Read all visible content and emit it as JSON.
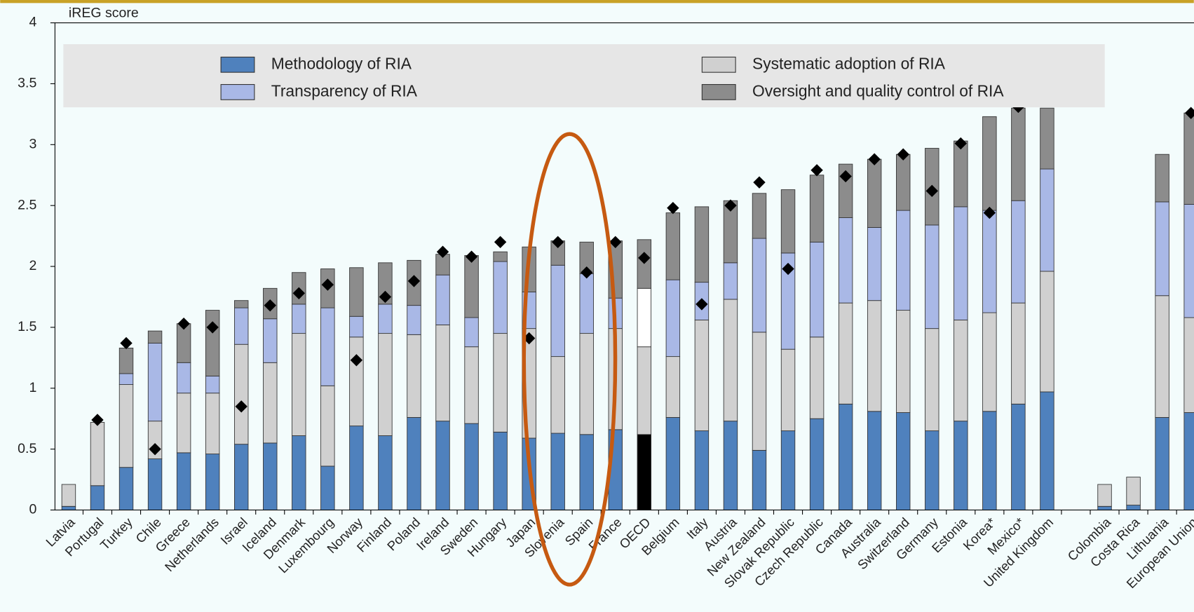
{
  "chart_data": {
    "type": "stacked_bar",
    "y_label": "iREG score",
    "categories": [
      "Latvia",
      "Portugal",
      "Turkey",
      "Chile",
      "Greece",
      "Netherlands",
      "Israel",
      "Iceland",
      "Denmark",
      "Luxembourg",
      "Norway",
      "Finland",
      "Poland",
      "Ireland",
      "Sweden",
      "Hungary",
      "Japan",
      "Slovenia",
      "Spain",
      "France",
      "OECD",
      "Belgium",
      "Italy",
      "Austria",
      "New Zealand",
      "Slovak Republic",
      "Czech Republic",
      "Canada",
      "Australia",
      "Switzerland",
      "Germany",
      "Estonia",
      "Korea*",
      "Mexico*",
      "United Kingdom",
      null,
      "Colombia",
      "Costa Rica",
      "Lithuania",
      "European Union"
    ],
    "series": [
      {
        "name": "Methodology of RIA",
        "color": "#4f81bd",
        "values": [
          0.03,
          0.2,
          0.35,
          0.42,
          0.47,
          0.46,
          0.54,
          0.55,
          0.61,
          0.36,
          0.69,
          0.61,
          0.76,
          0.73,
          0.71,
          0.64,
          0.59,
          0.63,
          0.62,
          0.66,
          0.62,
          0.76,
          0.65,
          0.73,
          0.49,
          0.65,
          0.75,
          0.87,
          0.81,
          0.8,
          0.65,
          0.73,
          0.81,
          0.87,
          0.97,
          null,
          0.03,
          0.04,
          0.76,
          0.8
        ]
      },
      {
        "name": "Systematic adoption of RIA",
        "color": "#d0d0d0",
        "values": [
          0.18,
          0.52,
          0.68,
          0.31,
          0.49,
          0.5,
          0.82,
          0.66,
          0.84,
          0.66,
          0.73,
          0.84,
          0.68,
          0.79,
          0.63,
          0.81,
          0.9,
          0.63,
          0.83,
          0.83,
          0.72,
          0.5,
          0.91,
          1.0,
          0.97,
          0.67,
          0.67,
          0.83,
          0.91,
          0.84,
          0.84,
          0.83,
          0.81,
          0.83,
          0.99,
          null,
          0.18,
          0.23,
          1.0,
          0.78
        ]
      },
      {
        "name": "Transparency of RIA",
        "color": "#a9b8e6",
        "values": [
          0,
          0,
          0.09,
          0.64,
          0.25,
          0.14,
          0.3,
          0.36,
          0.24,
          0.64,
          0.17,
          0.24,
          0.24,
          0.41,
          0.24,
          0.59,
          0.3,
          0.75,
          0.49,
          0.25,
          0.48,
          0.63,
          0.31,
          0.3,
          0.77,
          0.79,
          0.78,
          0.7,
          0.6,
          0.82,
          0.85,
          0.93,
          0.84,
          0.84,
          0.84,
          null,
          0,
          0,
          0.77,
          0.93
        ]
      },
      {
        "name": "Oversight and quality control of RIA",
        "color": "#8c8c8c",
        "values": [
          0,
          0,
          0.21,
          0.1,
          0.32,
          0.54,
          0.06,
          0.25,
          0.26,
          0.32,
          0.4,
          0.34,
          0.37,
          0.17,
          0.51,
          0.08,
          0.37,
          0.2,
          0.26,
          0.47,
          0.4,
          0.55,
          0.62,
          0.51,
          0.37,
          0.52,
          0.55,
          0.44,
          0.56,
          0.46,
          0.63,
          0.54,
          0.77,
          0.76,
          0.5,
          null,
          0,
          0,
          0.39,
          0.75
        ]
      }
    ],
    "markers": [
      null,
      0.74,
      1.37,
      0.5,
      1.53,
      1.5,
      0.85,
      1.68,
      1.78,
      1.85,
      1.23,
      1.75,
      1.88,
      2.12,
      2.08,
      2.2,
      1.41,
      2.2,
      1.95,
      2.2,
      2.07,
      2.48,
      1.69,
      2.5,
      2.69,
      1.98,
      2.79,
      2.74,
      2.88,
      2.92,
      2.62,
      3.01,
      2.44,
      3.31,
      null,
      null,
      null,
      null,
      null,
      3.26
    ],
    "marker_color": "#000000",
    "highlight": {
      "category": "OECD",
      "colors": [
        "#000000",
        "#d0d0d0",
        "#ffffff",
        "#8c8c8c"
      ]
    },
    "ylim": [
      0,
      4
    ],
    "yticks": [
      0,
      0.5,
      1,
      1.5,
      2,
      2.5,
      3,
      3.5,
      4
    ]
  }
}
